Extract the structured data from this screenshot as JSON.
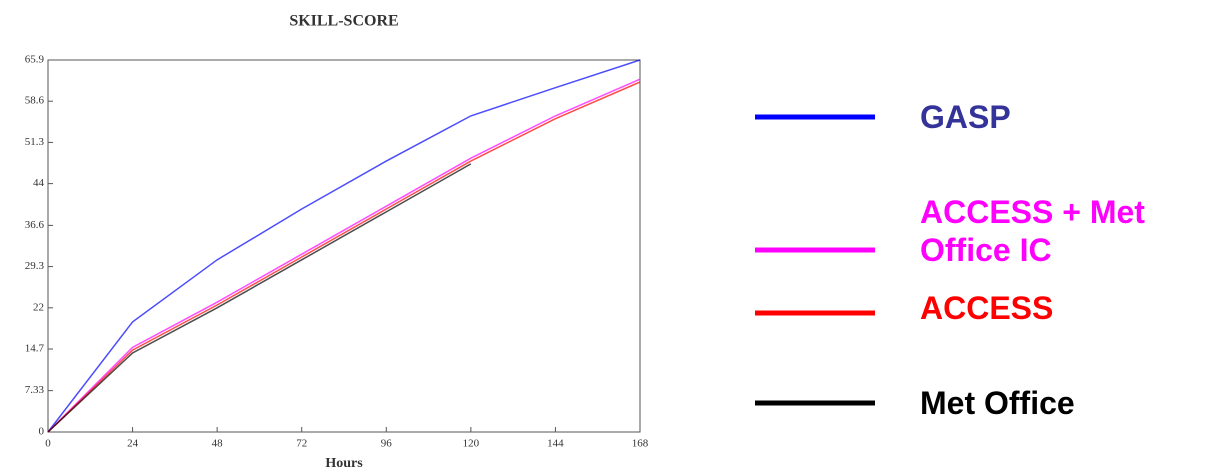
{
  "chart_data": {
    "type": "line",
    "title": "SKILL-SCORE",
    "x_label": "Hours",
    "x": [
      0,
      24,
      48,
      72,
      96,
      120,
      144,
      168
    ],
    "xlim": [
      0,
      168
    ],
    "xticks": [
      0,
      24,
      48,
      72,
      96,
      120,
      144,
      168
    ],
    "ylim": [
      0,
      65.9
    ],
    "yticks": [
      0,
      7.33,
      14.7,
      22,
      29.3,
      36.6,
      44,
      51.3,
      58.6,
      65.9
    ],
    "series": [
      {
        "name": "GASP",
        "color": "#0000ff",
        "label_color": "#333399",
        "values": [
          0,
          19.5,
          30.5,
          39.5,
          48,
          56,
          61,
          65.9
        ]
      },
      {
        "name": "ACCESS + Met Office IC",
        "color": "#ff00ff",
        "label_color": "#ff00ff",
        "values": [
          0,
          15,
          23,
          31.5,
          40,
          48.5,
          56,
          62.5
        ]
      },
      {
        "name": "ACCESS",
        "color": "#ff0000",
        "label_color": "#ff0000",
        "values": [
          0,
          14.5,
          22.5,
          31,
          39.5,
          48,
          55.5,
          62
        ]
      },
      {
        "name": "Met Office",
        "color": "#000000",
        "label_color": "#000000",
        "values": [
          0,
          14,
          22,
          30.5,
          39,
          47.5,
          null,
          null
        ]
      }
    ]
  }
}
